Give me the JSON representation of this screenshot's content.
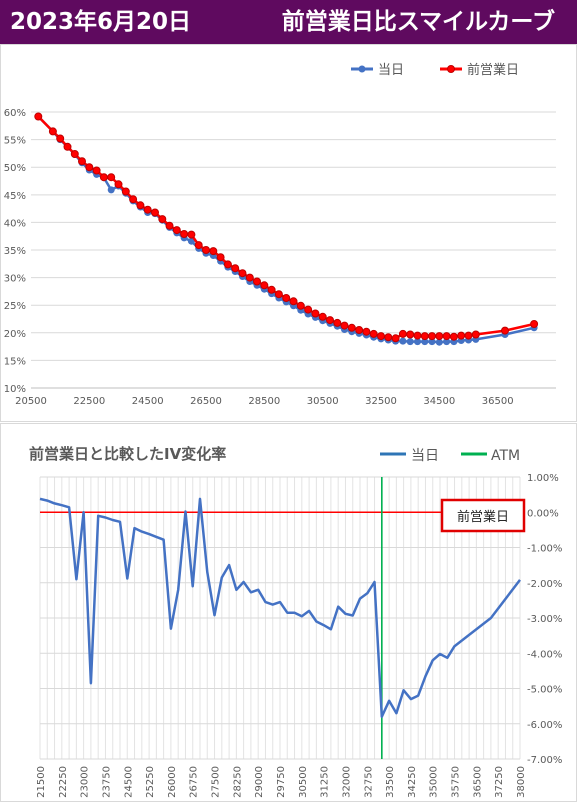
{
  "header": {
    "date": "2023年6月20日",
    "title": "前営業日比スマイルカーブ"
  },
  "chart_data": [
    {
      "type": "line",
      "title": "",
      "legend": "top",
      "grid": true,
      "xlim": [
        20500,
        38500
      ],
      "ylim": [
        10,
        62
      ],
      "x_ticks": [
        "20500",
        "22500",
        "24500",
        "26500",
        "28500",
        "30500",
        "32500",
        "34500",
        "36500"
      ],
      "y_ticks": [
        "10%",
        "15%",
        "20%",
        "25%",
        "30%",
        "35%",
        "40%",
        "45%",
        "50%",
        "55%",
        "60%"
      ],
      "series": [
        {
          "name": "当日",
          "color": "#4472c4",
          "points": [
            [
              20750,
              59.2
            ],
            [
              21250,
              56.5
            ],
            [
              21500,
              55.0
            ],
            [
              21750,
              53.7
            ],
            [
              22000,
              52.3
            ],
            [
              22250,
              50.8
            ],
            [
              22500,
              49.5
            ],
            [
              22750,
              48.7
            ],
            [
              23000,
              48.1
            ],
            [
              23250,
              45.9
            ],
            [
              23500,
              46.6
            ],
            [
              23750,
              45.3
            ],
            [
              24000,
              43.9
            ],
            [
              24250,
              42.8
            ],
            [
              24500,
              41.8
            ],
            [
              24750,
              41.6
            ],
            [
              25000,
              40.4
            ],
            [
              25250,
              39.1
            ],
            [
              25500,
              38.1
            ],
            [
              25750,
              37.2
            ],
            [
              26000,
              36.6
            ],
            [
              26250,
              35.3
            ],
            [
              26500,
              34.4
            ],
            [
              26750,
              34.0
            ],
            [
              27000,
              33.0
            ],
            [
              27250,
              31.9
            ],
            [
              27500,
              31.1
            ],
            [
              27750,
              30.2
            ],
            [
              28000,
              29.3
            ],
            [
              28250,
              28.6
            ],
            [
              28500,
              27.9
            ],
            [
              28750,
              27.1
            ],
            [
              29000,
              26.3
            ],
            [
              29250,
              25.6
            ],
            [
              29500,
              24.9
            ],
            [
              29750,
              24.1
            ],
            [
              30000,
              23.4
            ],
            [
              30250,
              22.8
            ],
            [
              30500,
              22.2
            ],
            [
              30750,
              21.7
            ],
            [
              31000,
              21.2
            ],
            [
              31250,
              20.6
            ],
            [
              31500,
              20.2
            ],
            [
              31750,
              19.9
            ],
            [
              32000,
              19.6
            ],
            [
              32250,
              19.2
            ],
            [
              32500,
              18.9
            ],
            [
              32750,
              18.7
            ],
            [
              33000,
              18.5
            ],
            [
              33250,
              18.5
            ],
            [
              33500,
              18.4
            ],
            [
              33750,
              18.4
            ],
            [
              34000,
              18.4
            ],
            [
              34250,
              18.4
            ],
            [
              34500,
              18.3
            ],
            [
              34750,
              18.4
            ],
            [
              35000,
              18.4
            ],
            [
              35250,
              18.6
            ],
            [
              35500,
              18.7
            ],
            [
              35750,
              18.8
            ],
            [
              36750,
              19.7
            ],
            [
              37750,
              20.9
            ]
          ]
        },
        {
          "name": "前営業日",
          "color": "#ff0000",
          "points": [
            [
              20750,
              59.2
            ],
            [
              21250,
              56.5
            ],
            [
              21500,
              55.2
            ],
            [
              21750,
              53.7
            ],
            [
              22000,
              52.4
            ],
            [
              22250,
              51.1
            ],
            [
              22500,
              50.0
            ],
            [
              22750,
              49.4
            ],
            [
              23000,
              48.2
            ],
            [
              23250,
              48.2
            ],
            [
              23500,
              46.9
            ],
            [
              23750,
              45.6
            ],
            [
              24000,
              44.2
            ],
            [
              24250,
              43.1
            ],
            [
              24500,
              42.3
            ],
            [
              24750,
              41.8
            ],
            [
              25000,
              40.6
            ],
            [
              25250,
              39.4
            ],
            [
              25500,
              38.6
            ],
            [
              25750,
              37.9
            ],
            [
              26000,
              37.8
            ],
            [
              26250,
              35.9
            ],
            [
              26500,
              35.0
            ],
            [
              26750,
              34.8
            ],
            [
              27000,
              33.7
            ],
            [
              27250,
              32.4
            ],
            [
              27500,
              31.7
            ],
            [
              27750,
              30.8
            ],
            [
              28000,
              30.0
            ],
            [
              28250,
              29.3
            ],
            [
              28500,
              28.6
            ],
            [
              28750,
              27.8
            ],
            [
              29000,
              27.0
            ],
            [
              29250,
              26.3
            ],
            [
              29500,
              25.7
            ],
            [
              29750,
              24.9
            ],
            [
              30000,
              24.2
            ],
            [
              30250,
              23.5
            ],
            [
              30500,
              22.9
            ],
            [
              30750,
              22.3
            ],
            [
              31000,
              21.8
            ],
            [
              31250,
              21.3
            ],
            [
              31500,
              20.9
            ],
            [
              31750,
              20.5
            ],
            [
              32000,
              20.2
            ],
            [
              32250,
              19.8
            ],
            [
              32500,
              19.4
            ],
            [
              32750,
              19.2
            ],
            [
              33000,
              19.0
            ],
            [
              33250,
              19.8
            ],
            [
              33500,
              19.7
            ],
            [
              33750,
              19.5
            ],
            [
              34000,
              19.4
            ],
            [
              34250,
              19.4
            ],
            [
              34500,
              19.4
            ],
            [
              34750,
              19.4
            ],
            [
              35000,
              19.3
            ],
            [
              35250,
              19.5
            ],
            [
              35500,
              19.5
            ],
            [
              35750,
              19.7
            ],
            [
              36750,
              20.4
            ],
            [
              37750,
              21.6
            ]
          ]
        }
      ]
    },
    {
      "type": "line",
      "title": "前営業日と比較したIV変化率",
      "legend": "top-right",
      "grid": true,
      "xlim": [
        21500,
        38000
      ],
      "ylim": [
        -7.0,
        1.0
      ],
      "x_ticks": [
        "21500",
        "22250",
        "23000",
        "23750",
        "24500",
        "25250",
        "26000",
        "26750",
        "27500",
        "28250",
        "29000",
        "29750",
        "30500",
        "31250",
        "32000",
        "32750",
        "33500",
        "34250",
        "35000",
        "35750",
        "36500",
        "37250",
        "38000"
      ],
      "y_ticks": [
        "1.00%",
        "0.00%",
        "-1.00%",
        "-2.00%",
        "-3.00%",
        "-4.00%",
        "-5.00%",
        "-6.00%",
        "-7.00%"
      ],
      "atm": 33250,
      "annotation": "前営業日",
      "series": [
        {
          "name": "当日",
          "color": "#4472c4",
          "points": [
            [
              21500,
              0.38
            ],
            [
              21750,
              0.33
            ],
            [
              22000,
              0.25
            ],
            [
              22250,
              0.2
            ],
            [
              22500,
              0.14
            ],
            [
              22750,
              -1.9
            ],
            [
              23000,
              0.0
            ],
            [
              23250,
              -4.85
            ],
            [
              23500,
              -0.1
            ],
            [
              23750,
              -0.15
            ],
            [
              24000,
              -0.22
            ],
            [
              24250,
              -0.27
            ],
            [
              24500,
              -1.88
            ],
            [
              24750,
              -0.45
            ],
            [
              25000,
              -0.55
            ],
            [
              25250,
              -0.62
            ],
            [
              25500,
              -0.7
            ],
            [
              25750,
              -0.78
            ],
            [
              26000,
              -3.3
            ],
            [
              26250,
              -2.2
            ],
            [
              26500,
              0.02
            ],
            [
              26750,
              -2.1
            ],
            [
              27000,
              0.38
            ],
            [
              27250,
              -1.7
            ],
            [
              27500,
              -2.92
            ],
            [
              27750,
              -1.85
            ],
            [
              28000,
              -1.5
            ],
            [
              28250,
              -2.2
            ],
            [
              28500,
              -1.98
            ],
            [
              28750,
              -2.27
            ],
            [
              29000,
              -2.2
            ],
            [
              29250,
              -2.55
            ],
            [
              29500,
              -2.62
            ],
            [
              29750,
              -2.55
            ],
            [
              30000,
              -2.85
            ],
            [
              30250,
              -2.85
            ],
            [
              30500,
              -2.95
            ],
            [
              30750,
              -2.8
            ],
            [
              31000,
              -3.1
            ],
            [
              31250,
              -3.2
            ],
            [
              31500,
              -3.32
            ],
            [
              31750,
              -2.68
            ],
            [
              32000,
              -2.88
            ],
            [
              32250,
              -2.93
            ],
            [
              32500,
              -2.45
            ],
            [
              32750,
              -2.3
            ],
            [
              33000,
              -1.98
            ],
            [
              33250,
              -5.8
            ],
            [
              33500,
              -5.35
            ],
            [
              33750,
              -5.7
            ],
            [
              34000,
              -5.05
            ],
            [
              34250,
              -5.3
            ],
            [
              34500,
              -5.2
            ],
            [
              34750,
              -4.65
            ],
            [
              35000,
              -4.2
            ],
            [
              35250,
              -4.02
            ],
            [
              35500,
              -4.13
            ],
            [
              35750,
              -3.8
            ],
            [
              37000,
              -3.0
            ],
            [
              38000,
              -1.92
            ]
          ]
        },
        {
          "name": "ATM",
          "color": "#00b050"
        }
      ]
    }
  ]
}
